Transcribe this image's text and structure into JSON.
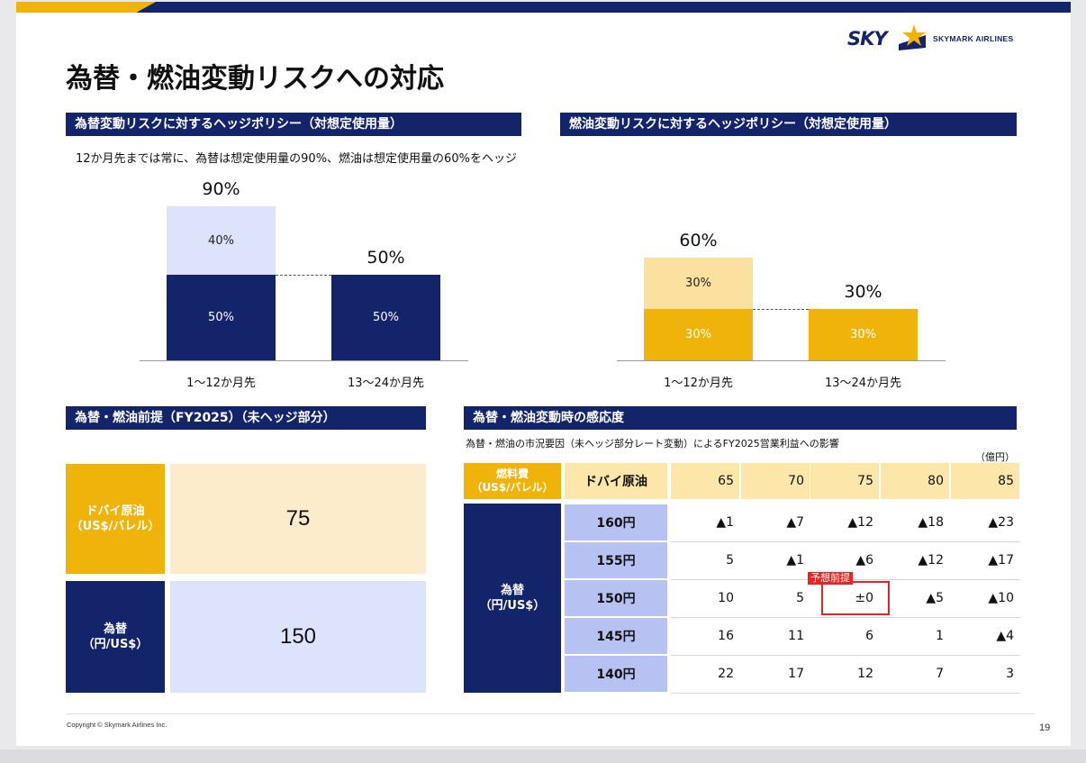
{
  "brand": {
    "sky_text": "SKY",
    "name_text": "SKYMARK AIRLINES",
    "navy": "#13246b",
    "gold": "#f0b30a"
  },
  "title": "為替・燃油変動リスクへの対応",
  "fx_hedge": {
    "heading": "為替変動リスクに対するヘッジポリシー（対想定使用量）",
    "note": "12か月先までは常に、為替は想定使用量の90%、燃油は想定使用量の60%をヘッジ"
  },
  "fuel_hedge": {
    "heading": "燃油変動リスクに対するヘッジポリシー（対想定使用量）"
  },
  "chart_data": [
    {
      "type": "bar",
      "categories": [
        "1〜12か月先",
        "13〜24か月先"
      ],
      "series": [
        {
          "values": [
            50,
            50
          ],
          "labels": [
            "50%",
            "50%"
          ],
          "color": "#13246b"
        },
        {
          "values": [
            40,
            0
          ],
          "labels": [
            "40%",
            ""
          ],
          "color": "#dde3fb"
        }
      ],
      "totals": [
        "90%",
        "50%"
      ],
      "ylim": [
        0,
        100
      ]
    },
    {
      "type": "bar",
      "categories": [
        "1〜12か月先",
        "13〜24か月先"
      ],
      "series": [
        {
          "values": [
            30,
            30
          ],
          "labels": [
            "30%",
            "30%"
          ],
          "color": "#f0b30a"
        },
        {
          "values": [
            30,
            0
          ],
          "labels": [
            "30%",
            ""
          ],
          "color": "#fce0a0"
        }
      ],
      "totals": [
        "60%",
        "30%"
      ],
      "ylim": [
        0,
        100
      ]
    }
  ],
  "premise": {
    "heading": "為替・燃油前提（FY2025）（未ヘッジ部分）",
    "oil_label_1": "ドバイ原油",
    "oil_label_2": "（US$/バレル）",
    "oil_value": "75",
    "fx_label_1": "為替",
    "fx_label_2": "（円/US$）",
    "fx_value": "150"
  },
  "sensitivity": {
    "heading": "為替・燃油変動時の感応度",
    "note": "為替・燃油の市況要因（未ヘッジ部分レート変動）によるFY2025営業利益への影響",
    "unit": "（億円）",
    "fuel_label_1": "燃料費",
    "fuel_label_2": "（US$/バレル）",
    "oil_header": "ドバイ原油",
    "columns": [
      "65",
      "70",
      "75",
      "80",
      "85"
    ],
    "fx_label_1": "為替",
    "fx_label_2": "（円/US$）",
    "rows": [
      {
        "rate": "160円",
        "values": [
          "▲1",
          "▲7",
          "▲12",
          "▲18",
          "▲23"
        ]
      },
      {
        "rate": "155円",
        "values": [
          "5",
          "▲1",
          "▲6",
          "▲12",
          "▲17"
        ]
      },
      {
        "rate": "150円",
        "values": [
          "10",
          "5",
          "±0",
          "▲5",
          "▲10"
        ]
      },
      {
        "rate": "145円",
        "values": [
          "16",
          "11",
          "6",
          "1",
          "▲4"
        ]
      },
      {
        "rate": "140円",
        "values": [
          "22",
          "17",
          "12",
          "7",
          "3"
        ]
      }
    ],
    "premise_tag": "予想前提"
  },
  "footer": {
    "copyright": "Copyright © Skymark Airlines Inc.",
    "page": "19"
  }
}
